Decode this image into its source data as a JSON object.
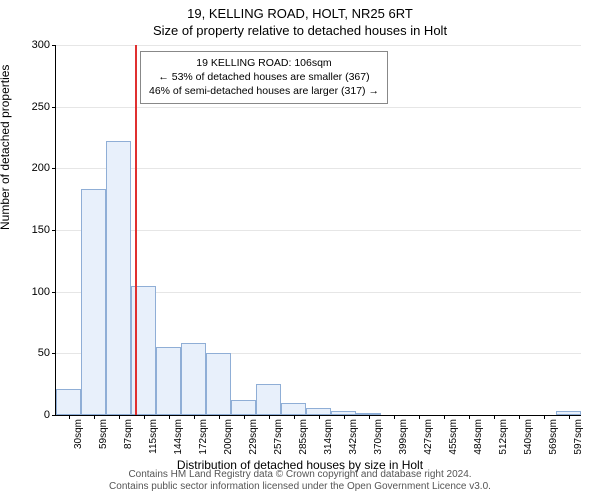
{
  "title_line1": "19, KELLING ROAD, HOLT, NR25 6RT",
  "title_line2": "Size of property relative to detached houses in Holt",
  "ylabel": "Number of detached properties",
  "xlabel": "Distribution of detached houses by size in Holt",
  "footer_line1": "Contains HM Land Registry data © Crown copyright and database right 2024.",
  "footer_line2": "Contains public sector information licensed under the Open Government Licence v3.0.",
  "annotation": {
    "line1": "19 KELLING ROAD: 106sqm",
    "line2": "← 53% of detached houses are smaller (367)",
    "line3": "46% of semi-detached houses are larger (317) →"
  },
  "chart": {
    "type": "histogram",
    "background_color": "#ffffff",
    "grid_color": "#e6e6e6",
    "bar_fill": "#e8f0fb",
    "bar_border": "#8faed6",
    "axis_color": "#000000",
    "reference_line_color": "#e03030",
    "reference_value": 106,
    "y_ticks": [
      0,
      50,
      100,
      150,
      200,
      250,
      300
    ],
    "ylim": [
      0,
      300
    ],
    "x_categories": [
      "30sqm",
      "59sqm",
      "87sqm",
      "115sqm",
      "144sqm",
      "172sqm",
      "200sqm",
      "229sqm",
      "257sqm",
      "285sqm",
      "314sqm",
      "342sqm",
      "370sqm",
      "399sqm",
      "427sqm",
      "455sqm",
      "484sqm",
      "512sqm",
      "540sqm",
      "569sqm",
      "597sqm"
    ],
    "values": [
      21,
      183,
      222,
      105,
      55,
      58,
      50,
      12,
      25,
      10,
      6,
      3,
      2,
      0,
      0,
      0,
      0,
      0,
      0,
      0,
      3
    ],
    "title_fontsize": 13,
    "label_fontsize": 12,
    "tick_fontsize": 11,
    "annotation_fontsize": 10.5
  }
}
